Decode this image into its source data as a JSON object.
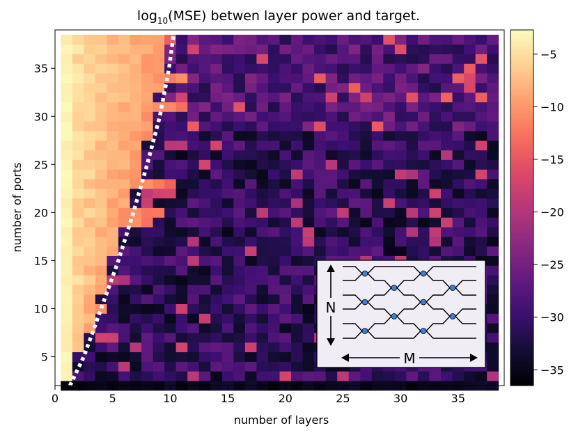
{
  "chart_data": {
    "type": "heatmap",
    "title": "log",
    "title_sub": "10",
    "title_rest": "(MSE) betwen layer power and target.",
    "xlabel": "number of layers",
    "ylabel": "number of ports",
    "xlim": [
      0,
      39
    ],
    "ylim": [
      2,
      39
    ],
    "xticks": [
      0,
      5,
      10,
      15,
      20,
      25,
      30,
      35
    ],
    "yticks": [
      5,
      10,
      15,
      20,
      25,
      30,
      35
    ],
    "colorbar": {
      "colormap": "magma",
      "range": [
        -36.5,
        -2.7
      ],
      "ticks": [
        -5,
        -10,
        -15,
        -20,
        -25,
        -30,
        -35
      ],
      "tick_labels": [
        "−5",
        "−10",
        "−15",
        "−20",
        "−25",
        "−30",
        "−35"
      ]
    },
    "cells": {
      "x_range": [
        1,
        38
      ],
      "y_range": [
        2,
        38
      ],
      "cell_size": 1,
      "value_model": "layers below the boundary curve hold high error (about -3 to -12); layers beyond it are low (about -22 to -35); ports = 2 row is darkest (about -34)"
    },
    "boundary_curve": {
      "style": "white dotted",
      "points": [
        [
          1.3,
          2
        ],
        [
          2.5,
          5
        ],
        [
          4,
          10
        ],
        [
          5.5,
          15
        ],
        [
          6.8,
          20
        ],
        [
          8,
          25
        ],
        [
          9.1,
          30
        ],
        [
          9.9,
          35
        ],
        [
          10.3,
          38.5
        ]
      ]
    },
    "inset": {
      "label_n": "N",
      "label_m": "M",
      "node_color": "#3d7fd8",
      "description_visible": "mesh of directional couplers with blue nodes"
    }
  }
}
